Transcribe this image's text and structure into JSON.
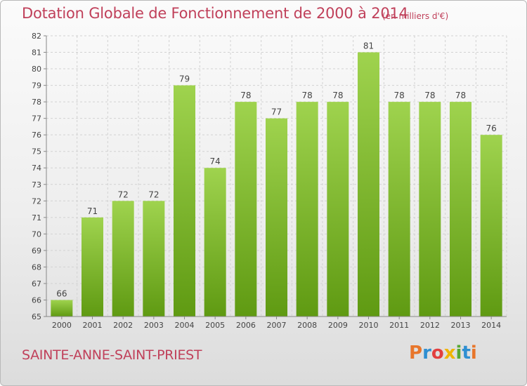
{
  "header": {
    "title": "Dotation Globale de Fonctionnement de 2000 à 2014",
    "unit_note": "(en milliers d'€)"
  },
  "footer": {
    "commune": "SAINTE-ANNE-SAINT-PRIEST",
    "logo_text": "Proxiti",
    "logo_colors": [
      "#e8762b",
      "#2f8fd1",
      "#e23f3f",
      "#f0b400",
      "#57a833",
      "#2f8fd1",
      "#e8762b"
    ]
  },
  "colors": {
    "accent": "#c0405a",
    "bar_top": "#9fd34e",
    "bar_bottom": "#5f9a12",
    "grid": "#d2d2d2",
    "axis": "#888888"
  },
  "chart_data": {
    "type": "bar",
    "categories": [
      "2000",
      "2001",
      "2002",
      "2003",
      "2004",
      "2005",
      "2006",
      "2007",
      "2008",
      "2009",
      "2010",
      "2011",
      "2012",
      "2013",
      "2014"
    ],
    "values": [
      66,
      71,
      72,
      72,
      79,
      74,
      78,
      77,
      78,
      78,
      81,
      78,
      78,
      78,
      76
    ],
    "data_labels": [
      "66",
      "71",
      "72",
      "72",
      "79",
      "74",
      "78",
      "77",
      "78",
      "78",
      "81",
      "78",
      "78",
      "78",
      "76"
    ],
    "title": "Dotation Globale de Fonctionnement de 2000 à 2014",
    "subtitle": "(en milliers d'€)",
    "xlabel": "",
    "ylabel": "",
    "ylim": [
      65,
      82
    ],
    "yticks": [
      65,
      66,
      67,
      68,
      69,
      70,
      71,
      72,
      73,
      74,
      75,
      76,
      77,
      78,
      79,
      80,
      81,
      82
    ],
    "grid": true,
    "legend": "none"
  }
}
